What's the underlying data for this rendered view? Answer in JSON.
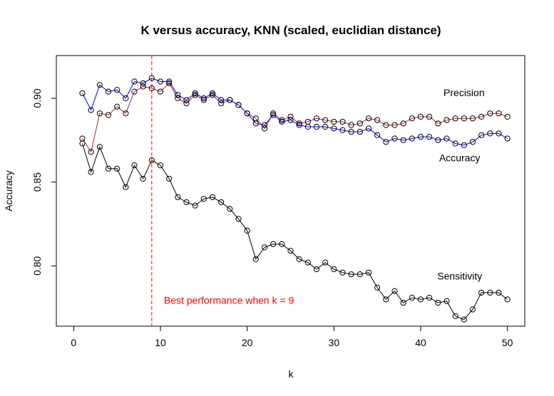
{
  "chart_data": {
    "type": "line",
    "title": "K versus accuracy, KNN (scaled, euclidian distance)",
    "xlabel": "k",
    "ylabel": "Accuracy",
    "xlim": [
      -2,
      52
    ],
    "ylim": [
      0.764,
      0.9255
    ],
    "x_ticks": [
      0,
      10,
      20,
      30,
      40,
      50
    ],
    "y_ticks": [
      0.8,
      0.85,
      0.9
    ],
    "y_tick_labels": [
      "0.80",
      "0.85",
      "0.90"
    ],
    "grid": false,
    "legend": "none",
    "x": [
      1,
      2,
      3,
      4,
      5,
      6,
      7,
      8,
      9,
      10,
      11,
      12,
      13,
      14,
      15,
      16,
      17,
      18,
      19,
      20,
      21,
      22,
      23,
      24,
      25,
      26,
      27,
      28,
      29,
      30,
      31,
      32,
      33,
      34,
      35,
      36,
      37,
      38,
      39,
      40,
      41,
      42,
      43,
      44,
      45,
      46,
      47,
      48,
      49,
      50
    ],
    "series": [
      {
        "name": "Precision",
        "color": "#a52a2a",
        "values": [
          0.876,
          0.868,
          0.891,
          0.89,
          0.895,
          0.891,
          0.904,
          0.907,
          0.906,
          0.904,
          0.909,
          0.9,
          0.897,
          0.902,
          0.899,
          0.902,
          0.897,
          0.899,
          0.896,
          0.891,
          0.888,
          0.882,
          0.891,
          0.887,
          0.889,
          0.885,
          0.886,
          0.888,
          0.887,
          0.886,
          0.886,
          0.884,
          0.885,
          0.888,
          0.887,
          0.884,
          0.884,
          0.885,
          0.888,
          0.889,
          0.889,
          0.885,
          0.887,
          0.888,
          0.888,
          0.888,
          0.889,
          0.891,
          0.891,
          0.889
        ]
      },
      {
        "name": "Accuracy",
        "color": "#0000ff",
        "values": [
          0.903,
          0.893,
          0.908,
          0.904,
          0.905,
          0.9,
          0.91,
          0.909,
          0.912,
          0.91,
          0.91,
          0.902,
          0.899,
          0.903,
          0.9,
          0.903,
          0.899,
          0.899,
          0.896,
          0.891,
          0.885,
          0.884,
          0.89,
          0.886,
          0.887,
          0.884,
          0.883,
          0.883,
          0.883,
          0.882,
          0.881,
          0.88,
          0.88,
          0.882,
          0.878,
          0.874,
          0.876,
          0.875,
          0.876,
          0.877,
          0.877,
          0.875,
          0.876,
          0.873,
          0.872,
          0.874,
          0.878,
          0.879,
          0.879,
          0.876
        ]
      },
      {
        "name": "Sensitivity",
        "color": "#000000",
        "values": [
          0.873,
          0.856,
          0.871,
          0.858,
          0.858,
          0.847,
          0.86,
          0.852,
          0.863,
          0.86,
          0.852,
          0.841,
          0.838,
          0.836,
          0.84,
          0.841,
          0.838,
          0.834,
          0.828,
          0.821,
          0.804,
          0.811,
          0.813,
          0.813,
          0.809,
          0.804,
          0.802,
          0.798,
          0.802,
          0.798,
          0.796,
          0.795,
          0.795,
          0.796,
          0.787,
          0.78,
          0.785,
          0.778,
          0.781,
          0.78,
          0.781,
          0.778,
          0.779,
          0.77,
          0.768,
          0.774,
          0.784,
          0.784,
          0.784,
          0.78
        ]
      }
    ],
    "annotations": [
      {
        "text": "Precision",
        "x": 45,
        "y": 0.9035,
        "color": "#000000"
      },
      {
        "text": "Accuracy",
        "x": 44.5,
        "y": 0.8645,
        "color": "#000000"
      },
      {
        "text": "Sensitivity",
        "x": 44.5,
        "y": 0.794,
        "color": "#000000"
      },
      {
        "text": "Best performance when k =  9",
        "x": 10.4,
        "y": 0.7795,
        "color": "#ff0000"
      }
    ],
    "vline": {
      "x": 9,
      "color": "#ff0000",
      "style": "dashed"
    }
  }
}
